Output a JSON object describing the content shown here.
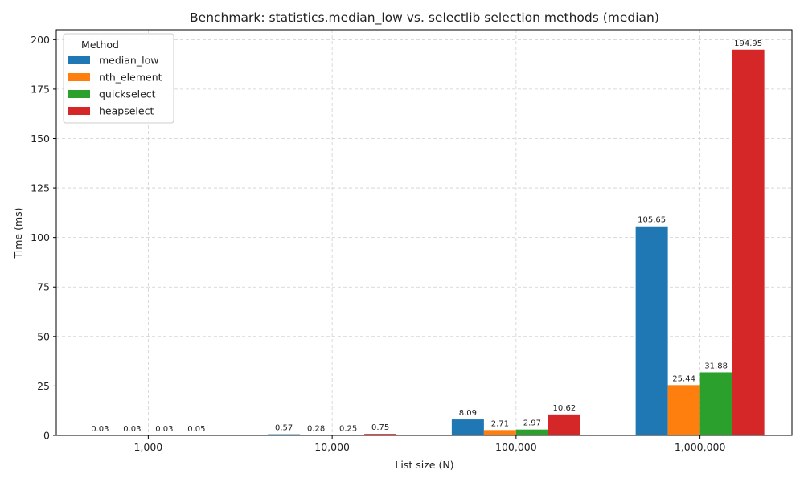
{
  "chart_data": {
    "type": "bar",
    "title": "Benchmark: statistics.median_low vs. selectlib selection methods (median)",
    "xlabel": "List size (N)",
    "ylabel": "Time (ms)",
    "ylim": [
      0,
      205
    ],
    "yticks": [
      0,
      25,
      50,
      75,
      100,
      125,
      150,
      175,
      200
    ],
    "grid": true,
    "legend_title": "Method",
    "legend_position": "top-left",
    "categories": [
      "1,000",
      "10,000",
      "100,000",
      "1,000,000"
    ],
    "series": [
      {
        "name": "median_low",
        "color": "#1f77b4",
        "values": [
          0.03,
          0.57,
          8.09,
          105.65
        ],
        "labels": [
          "0.03",
          "0.57",
          "8.09",
          "105.65"
        ]
      },
      {
        "name": "nth_element",
        "color": "#ff7f0e",
        "values": [
          0.03,
          0.28,
          2.71,
          25.44
        ],
        "labels": [
          "0.03",
          "0.28",
          "2.71",
          "25.44"
        ]
      },
      {
        "name": "quickselect",
        "color": "#2ca02c",
        "values": [
          0.03,
          0.25,
          2.97,
          31.88
        ],
        "labels": [
          "0.03",
          "0.25",
          "2.97",
          "31.88"
        ]
      },
      {
        "name": "heapselect",
        "color": "#d62728",
        "values": [
          0.05,
          0.75,
          10.62,
          194.95
        ],
        "labels": [
          "0.05",
          "0.75",
          "10.62",
          "194.95"
        ]
      }
    ]
  }
}
